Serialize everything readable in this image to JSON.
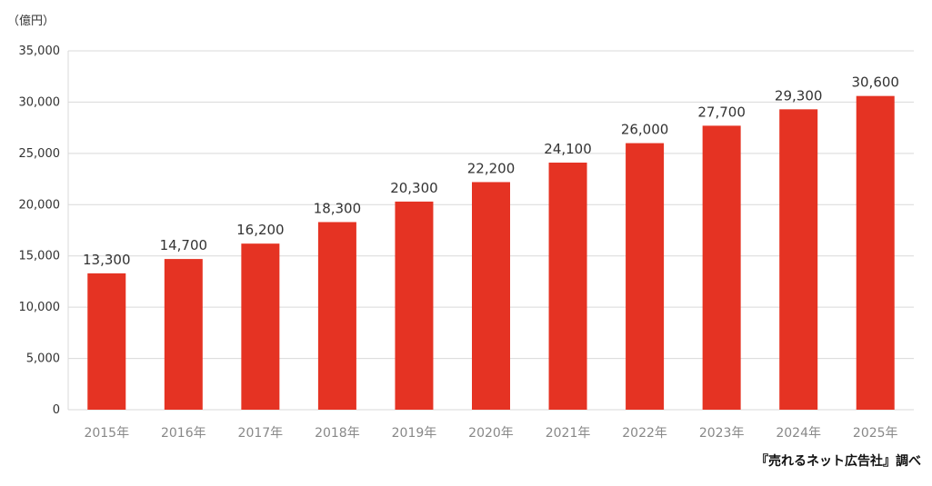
{
  "chart_data": {
    "type": "bar",
    "unit_label": "（億円）",
    "categories": [
      "2015年",
      "2016年",
      "2017年",
      "2018年",
      "2019年",
      "2020年",
      "2021年",
      "2022年",
      "2023年",
      "2024年",
      "2025年"
    ],
    "values": [
      13300,
      14700,
      16200,
      18300,
      20300,
      22200,
      24100,
      26000,
      27700,
      29300,
      30600
    ],
    "value_labels": [
      "13,300",
      "14,700",
      "16,200",
      "18,300",
      "20,300",
      "22,200",
      "24,100",
      "26,000",
      "27,700",
      "29,300",
      "30,600"
    ],
    "ylim": [
      0,
      35000
    ],
    "yticks": [
      0,
      5000,
      10000,
      15000,
      20000,
      25000,
      30000,
      35000
    ],
    "ytick_labels": [
      "0",
      "5,000",
      "10,000",
      "15,000",
      "20,000",
      "25,000",
      "30,000",
      "35,000"
    ],
    "grid": true,
    "bar_color": "#e53323",
    "grid_color": "#d9d9d9"
  },
  "source": "『売れるネット広告社』調べ"
}
